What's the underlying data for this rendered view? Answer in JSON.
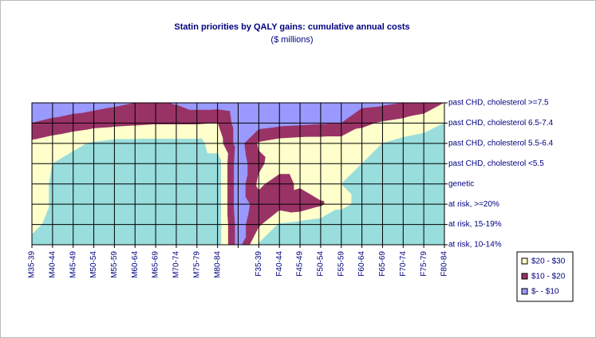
{
  "chart_data": {
    "type": "contour",
    "title": "Statin priorities by QALY gains: cumulative annual costs",
    "subtitle": "($ millions)",
    "categories": [
      "M35-39",
      "M40-44",
      "M45-49",
      "M50-54",
      "M55-59",
      "M60-64",
      "M65-69",
      "M70-74",
      "M75-79",
      "M80-84",
      null,
      "F35-39",
      "F40-44",
      "F45-49",
      "F50-54",
      "F55-59",
      "F60-64",
      "F65-69",
      "F70-74",
      "F75-79",
      "F80-84"
    ],
    "rows": [
      "at risk, 10-14%",
      "at risk, 15-19%",
      "at risk, >=20%",
      "genetic",
      "past CHD, cholesterol <5.5",
      "past CHD, cholesterol 5.5-6.4",
      "past CHD, cholesterol 6.5-7.4",
      "past CHD, cholesterol >=7.5"
    ],
    "values": [
      [
        35,
        35,
        35,
        35,
        35,
        35,
        35,
        35,
        35,
        35,
        5,
        31,
        35,
        35,
        35,
        35,
        35,
        35,
        35,
        35,
        35
      ],
      [
        25,
        35,
        35,
        35,
        35,
        35,
        35,
        35,
        35,
        35,
        5,
        18,
        31,
        33,
        35,
        35,
        35,
        35,
        35,
        35,
        35
      ],
      [
        25,
        31,
        35,
        35,
        35,
        35,
        35,
        35,
        35,
        35,
        3,
        15,
        15,
        12,
        18,
        28,
        32,
        35,
        35,
        35,
        35
      ],
      [
        25,
        31,
        35,
        35,
        35,
        35,
        35,
        35,
        35,
        35,
        3,
        22,
        15,
        22,
        28,
        30,
        32,
        35,
        35,
        35,
        35
      ],
      [
        25,
        30,
        33,
        35,
        35,
        35,
        35,
        35,
        35,
        35,
        3,
        18,
        25,
        25,
        25,
        25,
        30,
        33,
        35,
        35,
        35
      ],
      [
        22,
        25,
        28,
        31,
        33,
        33,
        33,
        33,
        33,
        25,
        5,
        21,
        24,
        25,
        25,
        25,
        26,
        30,
        33,
        35,
        35
      ],
      [
        10,
        12,
        14,
        16,
        17,
        18,
        19,
        19,
        19,
        20,
        5,
        5,
        7,
        8,
        9,
        10,
        18,
        21,
        23,
        25,
        30
      ],
      [
        3,
        4,
        5,
        6,
        8,
        10,
        12,
        9,
        5,
        5,
        3,
        3,
        3,
        4,
        5,
        6,
        7,
        8,
        10,
        14,
        20
      ]
    ],
    "levels": [
      0,
      10,
      20,
      30,
      40
    ],
    "bands": [
      {
        "name": "$-   - $10",
        "color": "#9999ff"
      },
      {
        "name": "$10 - $20",
        "color": "#993366"
      },
      {
        "name": "$20 - $30",
        "color": "#ffffcc"
      },
      {
        "color": "#99dddd"
      }
    ]
  }
}
